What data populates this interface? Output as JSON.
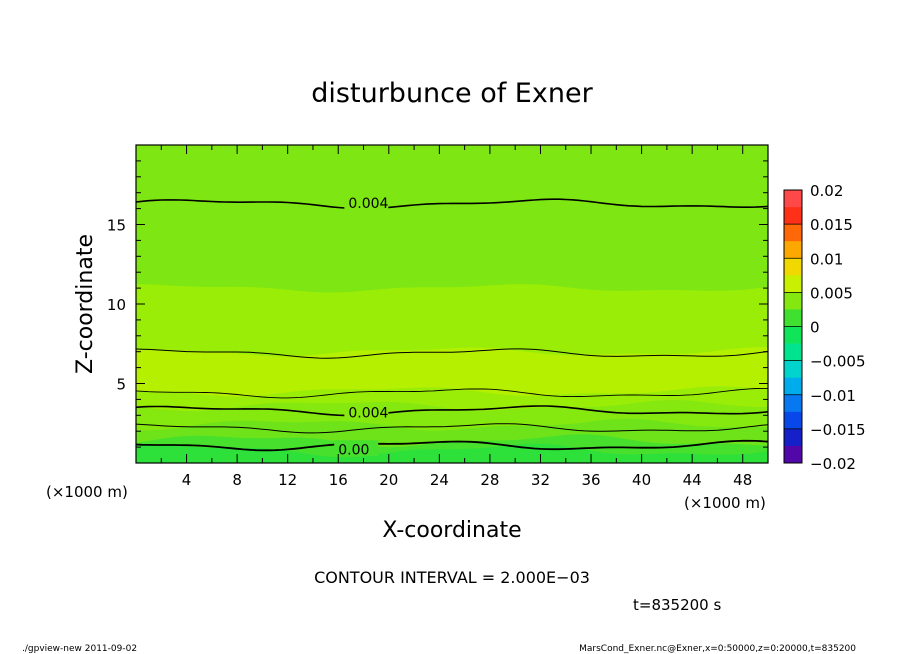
{
  "chart_data": {
    "type": "heatmap",
    "title": "disturbunce of Exner",
    "xlabel": "X-coordinate",
    "ylabel": "Z-coordinate",
    "x_unit_left": "(×1000 m)",
    "x_unit_right": "(×1000 m)",
    "xlim": [
      0,
      50
    ],
    "ylim": [
      0,
      20
    ],
    "x_ticks": [
      4,
      8,
      12,
      16,
      20,
      24,
      28,
      32,
      36,
      40,
      44,
      48
    ],
    "y_ticks": [
      5,
      10,
      15
    ],
    "colorbar": {
      "levels": [
        0.02,
        0.015,
        0.01,
        0.005,
        0,
        -0.005,
        -0.01,
        -0.015,
        -0.02
      ],
      "labels": [
        "0.02",
        "0.015",
        "0.01",
        "0.005",
        "0",
        "−0.005",
        "−0.01",
        "−0.015",
        "−0.02"
      ]
    },
    "contour_labels": [
      "0.004",
      "0.004",
      "0.00"
    ],
    "contour_interval_text": "CONTOUR INTERVAL = 2.000E−03",
    "time_text": "t=835200 s",
    "footer_left": "./gpview-new   2011-09-02",
    "footer_right": "MarsCond_Exner.nc@Exner,x=0:50000,z=0:20000,t=835200",
    "bands": [
      {
        "z_top": 20.0,
        "value": 0.0035
      },
      {
        "z_top": 11.0,
        "value": 0.0045
      },
      {
        "z_top": 7.0,
        "value": 0.0055
      },
      {
        "z_top": 4.5,
        "value": 0.0045
      },
      {
        "z_top": 3.6,
        "value": 0.0038
      },
      {
        "z_top": 2.4,
        "value": 0.003
      },
      {
        "z_top": 1.4,
        "value": 0.0015
      },
      {
        "z_top": 0.8,
        "value": 0.0005
      }
    ]
  }
}
